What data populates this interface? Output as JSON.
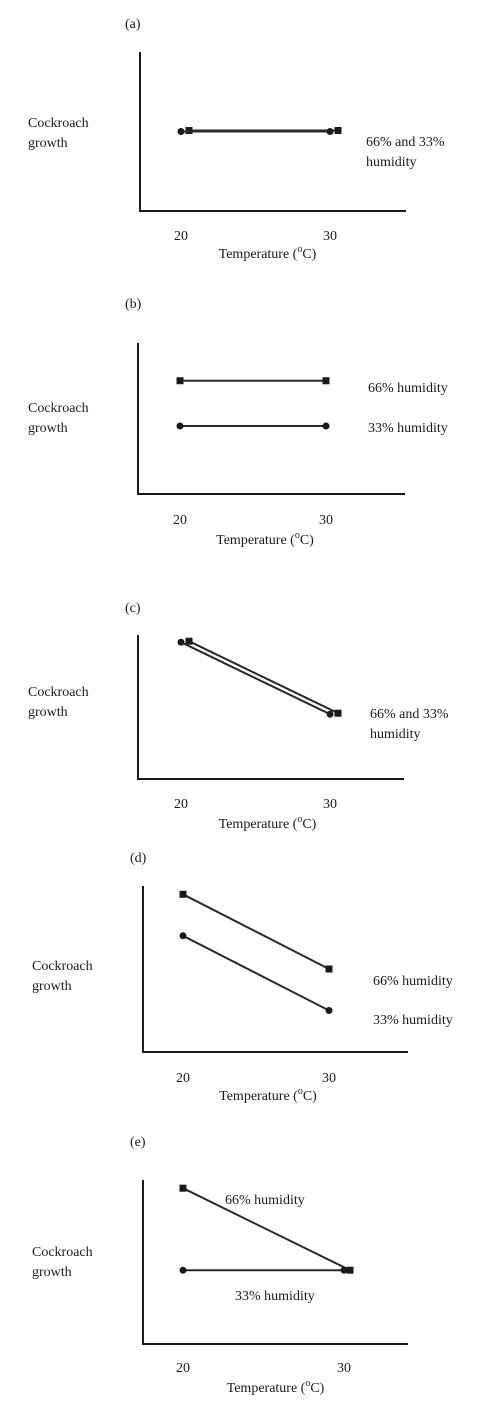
{
  "chart_data": [
    {
      "panel_label": "(a)",
      "type": "line",
      "ylabel": [
        "Cockroach",
        "growth"
      ],
      "xlabel": "Temperature (°C)",
      "xlabel_main": "Temperature (",
      "xlabel_sup": "o",
      "xlabel_end": "C)",
      "x_ticks": [
        "20",
        "30"
      ],
      "series": [
        {
          "marker": "square",
          "x": [
            20,
            30
          ],
          "y": [
            0.5,
            0.5
          ]
        },
        {
          "marker": "circle",
          "x": [
            20,
            30
          ],
          "y": [
            0.5,
            0.5
          ]
        }
      ],
      "annotations": [
        "66% and 33%",
        "humidity"
      ]
    },
    {
      "panel_label": "(b)",
      "type": "line",
      "ylabel": [
        "Cockroach",
        "growth"
      ],
      "xlabel": "Temperature (°C)",
      "xlabel_main": "Temperature (",
      "xlabel_sup": "o",
      "xlabel_end": "C)",
      "x_ticks": [
        "20",
        "30"
      ],
      "series": [
        {
          "name": "66% humidity",
          "marker": "square",
          "x": [
            20,
            30
          ],
          "y": [
            0.75,
            0.75
          ]
        },
        {
          "name": "33% humidity",
          "marker": "circle",
          "x": [
            20,
            30
          ],
          "y": [
            0.45,
            0.45
          ]
        }
      ],
      "annotations": []
    },
    {
      "panel_label": "(c)",
      "type": "line",
      "ylabel": [
        "Cockroach",
        "growth"
      ],
      "xlabel": "Temperature (°C)",
      "xlabel_main": "Temperature (",
      "xlabel_sup": "o",
      "xlabel_end": "C)",
      "x_ticks": [
        "20",
        "30"
      ],
      "series": [
        {
          "marker": "square",
          "x": [
            20,
            30
          ],
          "y": [
            0.95,
            0.45
          ]
        },
        {
          "marker": "circle",
          "x": [
            20,
            30
          ],
          "y": [
            0.95,
            0.45
          ]
        }
      ],
      "annotations": [
        "66% and 33%",
        "humidity"
      ]
    },
    {
      "panel_label": "(d)",
      "type": "line",
      "ylabel": [
        "Cockroach",
        "growth"
      ],
      "xlabel": "Temperature (°C)",
      "xlabel_main": "Temperature (",
      "xlabel_sup": "o",
      "xlabel_end": "C)",
      "x_ticks": [
        "20",
        "30"
      ],
      "series": [
        {
          "name": "66% humidity",
          "marker": "square",
          "x": [
            20,
            30
          ],
          "y": [
            0.95,
            0.5
          ]
        },
        {
          "name": "33% humidity",
          "marker": "circle",
          "x": [
            20,
            30
          ],
          "y": [
            0.7,
            0.25
          ]
        }
      ],
      "annotations": []
    },
    {
      "panel_label": "(e)",
      "type": "line",
      "ylabel": [
        "Cockroach",
        "growth"
      ],
      "xlabel": "Temperature (°C)",
      "xlabel_main": "Temperature (",
      "xlabel_sup": "o",
      "xlabel_end": "C)",
      "x_ticks": [
        "20",
        "30"
      ],
      "series": [
        {
          "name": "66% humidity",
          "marker": "square",
          "x": [
            20,
            30
          ],
          "y": [
            0.95,
            0.45
          ]
        },
        {
          "name": "33% humidity",
          "marker": "circle",
          "x": [
            20,
            30
          ],
          "y": [
            0.45,
            0.45
          ]
        }
      ],
      "annotations": []
    }
  ]
}
